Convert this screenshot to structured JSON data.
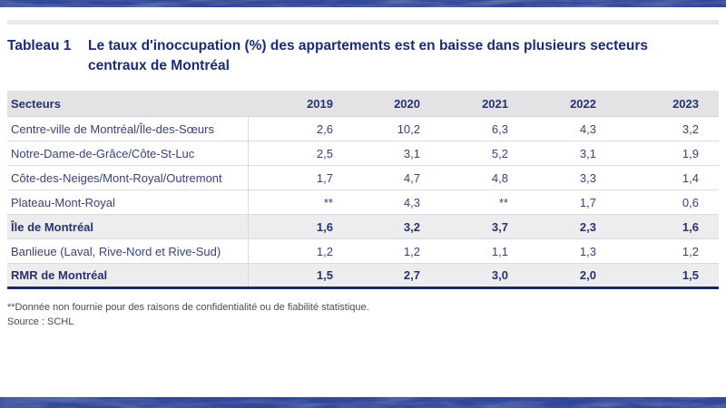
{
  "header": {
    "label": "Tableau 1",
    "title": "Le taux d'inoccupation (%) des appartements est en baisse dans plusieurs secteurs centraux de Montréal"
  },
  "table": {
    "columns": [
      "Secteurs",
      "2019",
      "2020",
      "2021",
      "2022",
      "2023"
    ],
    "rows": [
      {
        "label": "Centre-ville de Montréal/Île-des-Sœurs",
        "values": [
          "2,6",
          "10,2",
          "6,3",
          "4,3",
          "3,2"
        ],
        "bold": false,
        "shaded": false
      },
      {
        "label": "Notre-Dame-de-Grâce/Côte-St-Luc",
        "values": [
          "2,5",
          "3,1",
          "5,2",
          "3,1",
          "1,9"
        ],
        "bold": false,
        "shaded": false
      },
      {
        "label": "Côte-des-Neiges/Mont-Royal/Outremont",
        "values": [
          "1,7",
          "4,7",
          "4,8",
          "3,3",
          "1,4"
        ],
        "bold": false,
        "shaded": false
      },
      {
        "label": "Plateau-Mont-Royal",
        "values": [
          "**",
          "4,3",
          "**",
          "1,7",
          "0,6"
        ],
        "bold": false,
        "shaded": false
      },
      {
        "label": "Île de Montréal",
        "values": [
          "1,6",
          "3,2",
          "3,7",
          "2,3",
          "1,6"
        ],
        "bold": true,
        "shaded": true
      },
      {
        "label": "Banlieue (Laval, Rive-Nord et Rive-Sud)",
        "values": [
          "1,2",
          "1,2",
          "1,1",
          "1,3",
          "1,2"
        ],
        "bold": false,
        "shaded": false
      },
      {
        "label": "RMR de Montréal",
        "values": [
          "1,5",
          "2,7",
          "3,0",
          "2,0",
          "1,5"
        ],
        "bold": true,
        "shaded": true
      }
    ],
    "footnote": "**Donnée non fournie pour des raisons de confidentialité ou de fiabilité statistique.",
    "source": "Source : SCHL"
  },
  "colors": {
    "band_blue": "#31479c",
    "band_blue_dark": "#1c2c6a",
    "title_navy": "#1b2d6b",
    "header_row_bg": "#e3e3e6",
    "shaded_row_bg": "#ededf0",
    "cell_text": "#3a4272",
    "bottom_rule_navy": "#1b2a5e",
    "divider_gray": "#e9e9eb",
    "footnote_text": "#4b4b4d"
  }
}
